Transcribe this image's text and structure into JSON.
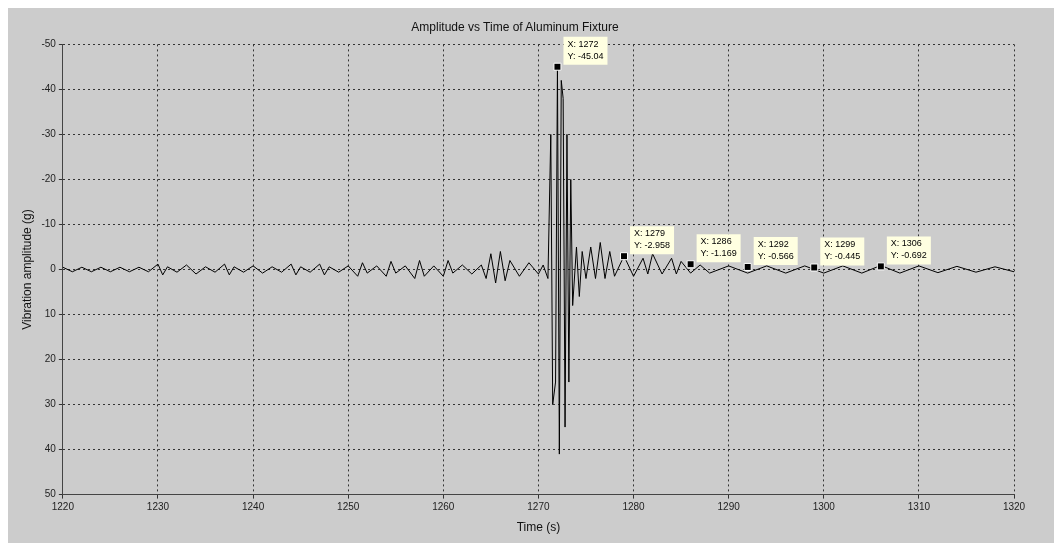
{
  "chart_data": {
    "type": "line",
    "title": "Amplitude vs Time of Aluminum Fixture",
    "xlabel": "Time (s)",
    "ylabel": "Vibration amplitude (g)",
    "xlim": [
      1220,
      1320
    ],
    "xticks": [
      1220,
      1230,
      1240,
      1250,
      1260,
      1270,
      1280,
      1290,
      1300,
      1310,
      1320
    ],
    "ylim": [
      50,
      -50
    ],
    "yticks": [
      -50,
      -40,
      -30,
      -20,
      -10,
      0,
      10,
      20,
      30,
      40,
      50
    ],
    "grid": true,
    "line_style": "solid",
    "series": [
      {
        "color": "#000000",
        "x": [
          1220,
          1221,
          1222,
          1223,
          1224,
          1225,
          1226,
          1227,
          1228,
          1229,
          1230,
          1230.5,
          1231,
          1232,
          1233,
          1234,
          1235,
          1236,
          1237,
          1237.5,
          1238,
          1239,
          1240,
          1241,
          1242,
          1243,
          1244,
          1244.5,
          1245,
          1246,
          1247,
          1247.5,
          1248,
          1249,
          1250,
          1251,
          1251.5,
          1252,
          1253,
          1254,
          1254.5,
          1255,
          1256,
          1257,
          1257.5,
          1258,
          1259,
          1260,
          1260.5,
          1261,
          1262,
          1263,
          1264,
          1264.5,
          1265,
          1265.5,
          1266,
          1266.5,
          1267,
          1268,
          1269,
          1270,
          1270.5,
          1271,
          1271.3,
          1271.5,
          1271.8,
          1272,
          1272.2,
          1272.4,
          1272.6,
          1272.8,
          1273,
          1273.2,
          1273.4,
          1273.6,
          1274,
          1274.3,
          1274.6,
          1275,
          1275.5,
          1276,
          1276.5,
          1277,
          1277.5,
          1278,
          1279,
          1280,
          1281,
          1281.5,
          1282,
          1283,
          1284,
          1284.5,
          1285,
          1286,
          1287,
          1288,
          1290,
          1292,
          1294,
          1296,
          1298,
          1300,
          1302,
          1304,
          1306,
          1308,
          1310,
          1312,
          1314,
          1316,
          1318,
          1320
        ],
        "values": [
          -0.5,
          0.5,
          -0.5,
          0.5,
          -0.5,
          0.5,
          -0.5,
          0.5,
          -0.5,
          0.5,
          -1.2,
          1.2,
          -0.6,
          0.6,
          -1,
          1,
          -0.6,
          0.6,
          -1.2,
          1.2,
          -0.6,
          0.6,
          -0.8,
          0.8,
          -0.6,
          0.6,
          -1.2,
          1.2,
          -0.6,
          0.6,
          -1.2,
          1.2,
          -0.6,
          0.6,
          -0.8,
          1.5,
          -1.5,
          0.8,
          -0.8,
          1.5,
          -1.8,
          0.8,
          -0.8,
          2,
          -2,
          1.5,
          -0.8,
          1.5,
          -2,
          0.8,
          -1,
          1,
          -1,
          2,
          -3.5,
          3,
          -4,
          2.5,
          -2,
          1.5,
          -1.5,
          1,
          -1,
          2,
          -30,
          30,
          25,
          -45,
          41,
          -42,
          -38,
          35,
          -30,
          25,
          -20,
          8,
          -5,
          6,
          -4,
          2,
          -5,
          2,
          -6,
          2,
          -4,
          1.5,
          -3,
          1.5,
          -2.5,
          1,
          -3.5,
          1,
          -2.5,
          1,
          -1.8,
          0.8,
          -1,
          0.8,
          -0.8,
          0.8,
          -0.8,
          0.8,
          -0.8,
          0.8,
          -0.8,
          0.8,
          -0.9,
          0.8,
          -0.8,
          0.7,
          -0.7,
          0.6,
          -0.6,
          0.5
        ]
      }
    ],
    "annotations": [
      {
        "text": "X: 1272\nY: -45.04",
        "x": 1272,
        "y": -45.04
      },
      {
        "text": "X: 1279\nY: -2.958",
        "x": 1279,
        "y": -2.958
      },
      {
        "text": "X: 1286\nY: -1.169",
        "x": 1286,
        "y": -1.169
      },
      {
        "text": "X: 1292\nY: -0.566",
        "x": 1292,
        "y": -0.566
      },
      {
        "text": "X: 1299\nY: -0.445",
        "x": 1299,
        "y": -0.445
      },
      {
        "text": "X: 1306\nY: -0.692",
        "x": 1306,
        "y": -0.692
      }
    ]
  }
}
